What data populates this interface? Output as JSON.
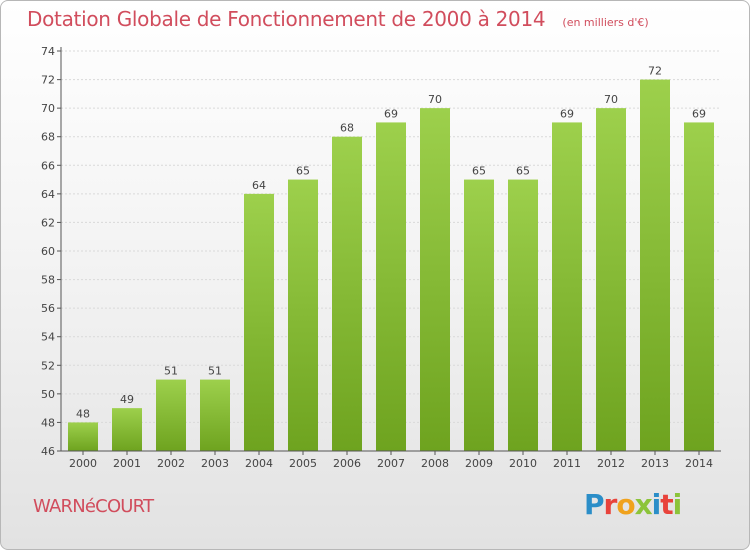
{
  "header": {
    "title": "Dotation Globale de Fonctionnement de 2000 à 2014",
    "unit": "(en milliers d'€)"
  },
  "footer": {
    "commune": "WARNéCOURT",
    "brand": "Proxiti"
  },
  "colors": {
    "title": "#d14d5d",
    "bar_light": "#9dd04c",
    "bar_dark": "#6ea31f",
    "brand": [
      "#2b8ec8",
      "#e8433b",
      "#f0a21d",
      "#8cc43a",
      "#2b8ec8",
      "#e8433b",
      "#8cc43a"
    ]
  },
  "chart_data": {
    "type": "bar",
    "categories": [
      "2000",
      "2001",
      "2002",
      "2003",
      "2004",
      "2005",
      "2006",
      "2007",
      "2008",
      "2009",
      "2010",
      "2011",
      "2012",
      "2013",
      "2014"
    ],
    "values": [
      48,
      49,
      51,
      51,
      64,
      65,
      68,
      69,
      70,
      65,
      65,
      69,
      70,
      72,
      69
    ],
    "data_labels": [
      "48",
      "49",
      "51",
      "51",
      "64",
      "65",
      "68",
      "69",
      "70",
      "65",
      "65",
      "69",
      "70",
      "72",
      "69"
    ],
    "yticks": [
      "46",
      "48",
      "50",
      "52",
      "54",
      "56",
      "58",
      "60",
      "62",
      "64",
      "66",
      "68",
      "70",
      "72",
      "74"
    ],
    "ylim": [
      46,
      74
    ],
    "grid": true,
    "legend": "none"
  }
}
